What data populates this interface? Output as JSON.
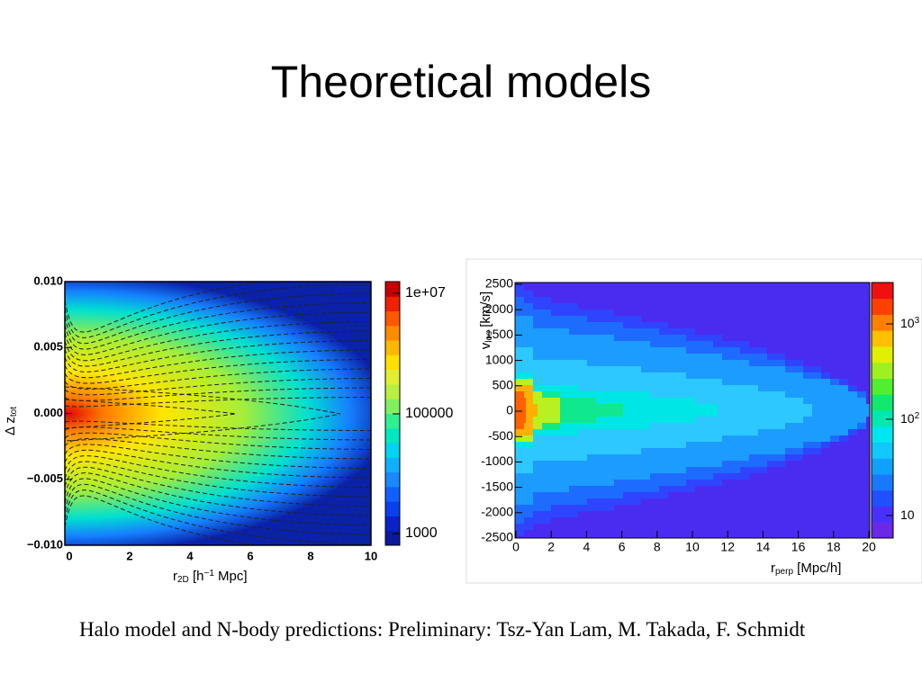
{
  "title": "Theoretical models",
  "left_plot": {
    "y_label": [
      "Δ z",
      "tot"
    ],
    "x_label": [
      "r",
      "2D",
      " [h",
      "−1",
      " Mpc]"
    ],
    "yticks": [
      "0.010",
      "0.005",
      "0.000",
      "−0.005",
      "−0.010"
    ],
    "xticks": [
      "0",
      "2",
      "4",
      "6",
      "8",
      "10"
    ],
    "colorbar_ticks": [
      "1e+07",
      "100000",
      "1000"
    ]
  },
  "right_plot": {
    "y_label": [
      "v",
      "los",
      " [km/s]"
    ],
    "x_label": [
      "r",
      "perp",
      "  [Mpc/h]"
    ],
    "yticks": [
      "2500",
      "2000",
      "1500",
      "1000",
      "500",
      "0",
      "-500",
      "-1000",
      "-1500",
      "-2000",
      "-2500"
    ],
    "xticks": [
      "0",
      "2",
      "4",
      "6",
      "8",
      "10",
      "12",
      "14",
      "16",
      "18",
      "20"
    ],
    "colorbar_ticks": [
      [
        "10",
        "3"
      ],
      [
        "10",
        "2"
      ],
      [
        "10",
        ""
      ]
    ]
  },
  "caption": "Halo model and N-body predictions: Preliminary: Tsz-Yan Lam, M. Takada, F. Schmidt"
}
